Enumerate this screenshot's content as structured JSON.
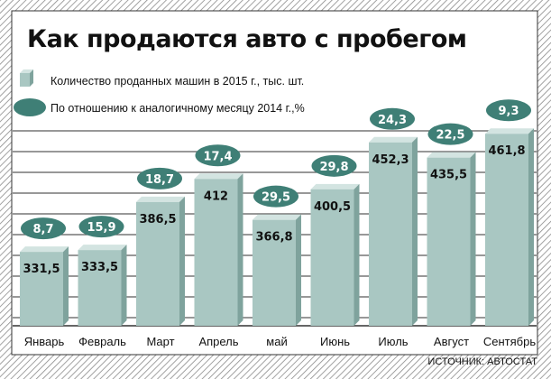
{
  "title": "Как продаются авто с пробегом",
  "legend": {
    "bars_label": "Количество проданных машин в 2015 г., тыс. шт.",
    "ovals_label": "По отношению к аналогичному месяцу 2014 г.,%"
  },
  "source": "ИСТОЧНИК: АВТОСТАТ",
  "colors": {
    "bar_front": "#a9c7c2",
    "bar_top": "#d3e4e1",
    "bar_side": "#7fa39d",
    "oval": "#3f7f76",
    "grid": "#5a5a5a",
    "panel": "#ffffff"
  },
  "chart_data": {
    "type": "bar",
    "categories": [
      "Январь",
      "Февраль",
      "Март",
      "Апрель",
      "май",
      "Июнь",
      "Июль",
      "Август",
      "Сентябрь"
    ],
    "series": [
      {
        "name": "Количество проданных машин в 2015 г., тыс. шт.",
        "values": [
          331.5,
          333.5,
          386.5,
          412,
          366.8,
          400.5,
          452.3,
          435.5,
          461.8
        ],
        "labels": [
          "331,5",
          "333,5",
          "386,5",
          "412",
          "366,8",
          "400,5",
          "452,3",
          "435,5",
          "461,8"
        ]
      },
      {
        "name": "По отношению к аналогичному месяцу 2014 г.,%",
        "values": [
          8.7,
          15.9,
          18.7,
          17.4,
          29.5,
          29.8,
          24.3,
          22.5,
          9.3
        ],
        "labels": [
          "8,7",
          "15,9",
          "18,7",
          "17,4",
          "29,5",
          "29,8",
          "24,3",
          "22,5",
          "9,3"
        ]
      }
    ],
    "ylim": [
      250,
      470
    ],
    "grid": true,
    "legend_position": "top-left"
  }
}
